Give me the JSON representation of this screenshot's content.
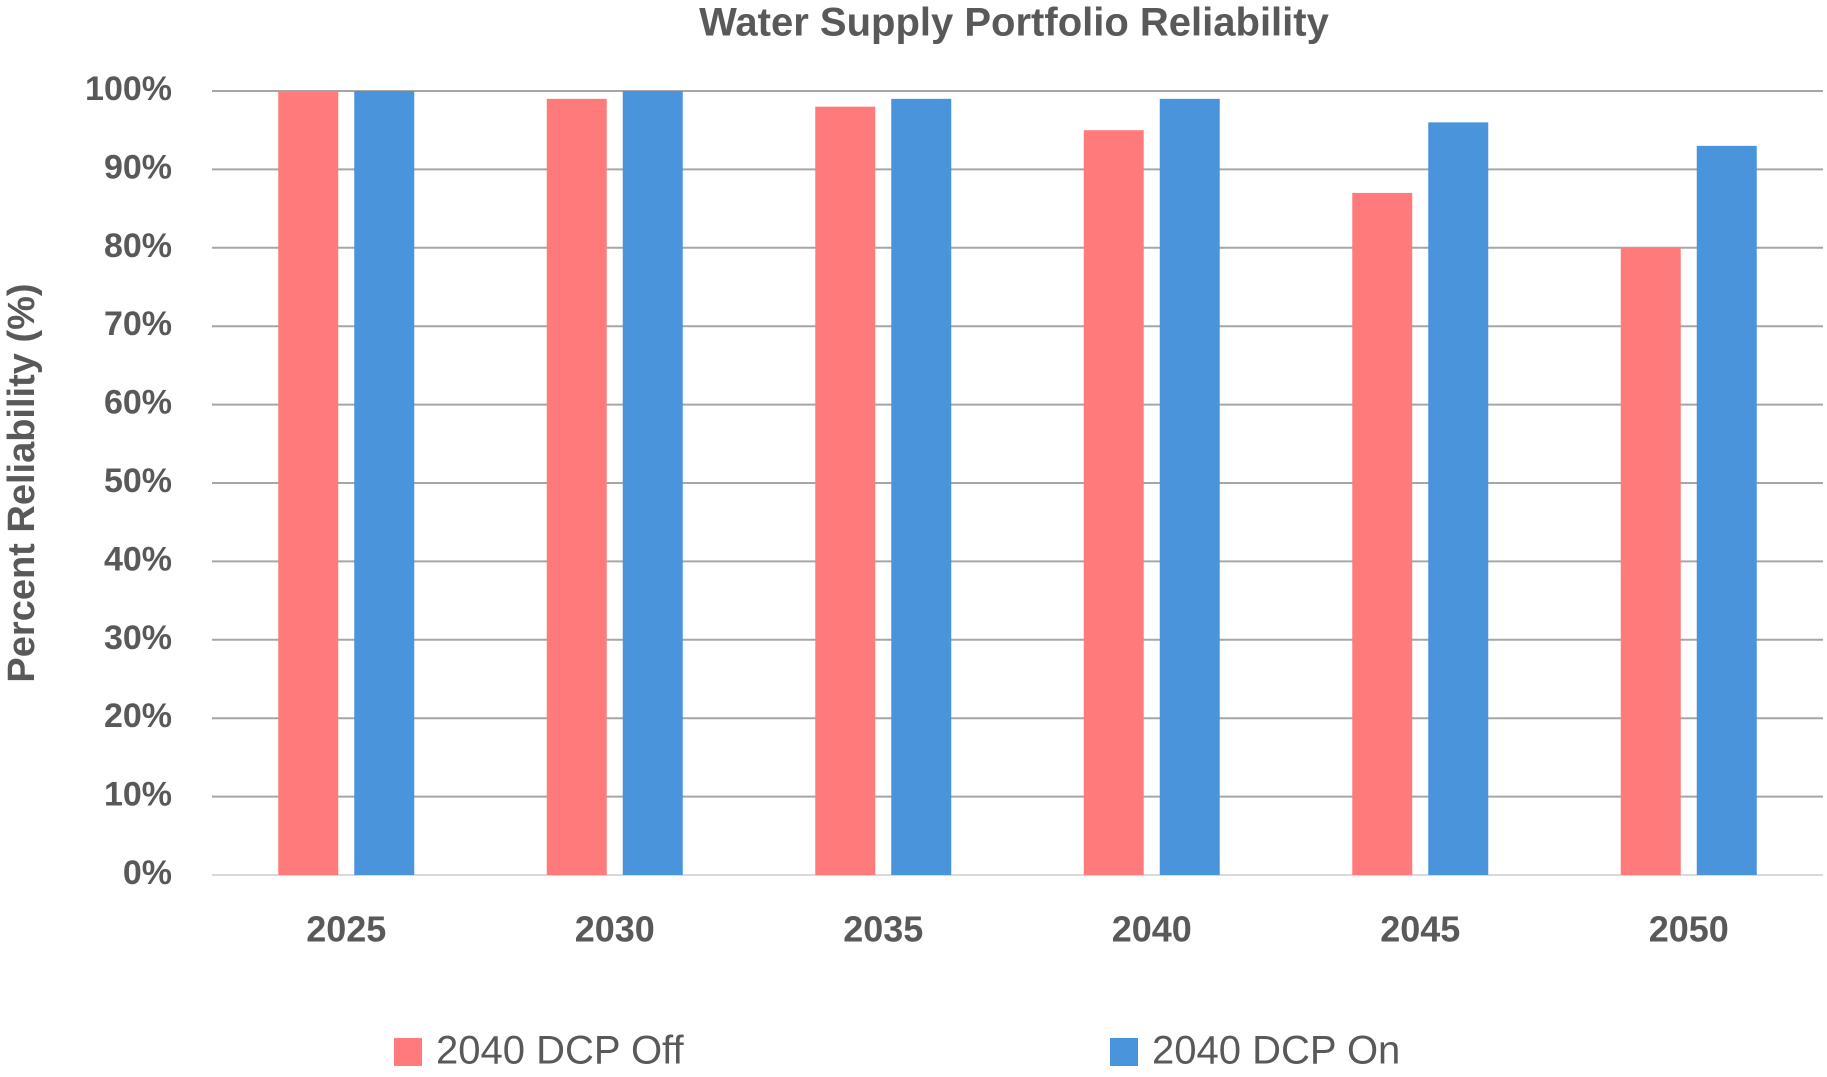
{
  "chart_data": {
    "type": "bar",
    "title": "Water Supply Portfolio Reliability",
    "y_label": "Percent Reliability (%)",
    "categories": [
      "2025",
      "2030",
      "2035",
      "2040",
      "2045",
      "2050"
    ],
    "series": [
      {
        "name": "2040 DCP Off",
        "color": "#ff7b7b",
        "values": [
          100,
          99,
          98,
          95,
          87,
          80
        ]
      },
      {
        "name": "2040 DCP On",
        "color": "#4a94db",
        "values": [
          100,
          100,
          99,
          99,
          96,
          93
        ]
      }
    ],
    "ylim": [
      0,
      100
    ],
    "yticks": [
      {
        "value": 0,
        "label": "0%"
      },
      {
        "value": 10,
        "label": "10%"
      },
      {
        "value": 20,
        "label": "20%"
      },
      {
        "value": 30,
        "label": "30%"
      },
      {
        "value": 40,
        "label": "40%"
      },
      {
        "value": 50,
        "label": "50%"
      },
      {
        "value": 60,
        "label": "60%"
      },
      {
        "value": 70,
        "label": "70%"
      },
      {
        "value": 80,
        "label": "80%"
      },
      {
        "value": 90,
        "label": "90%"
      },
      {
        "value": 100,
        "label": "100%"
      }
    ],
    "grid": true,
    "legend": "bottom"
  }
}
